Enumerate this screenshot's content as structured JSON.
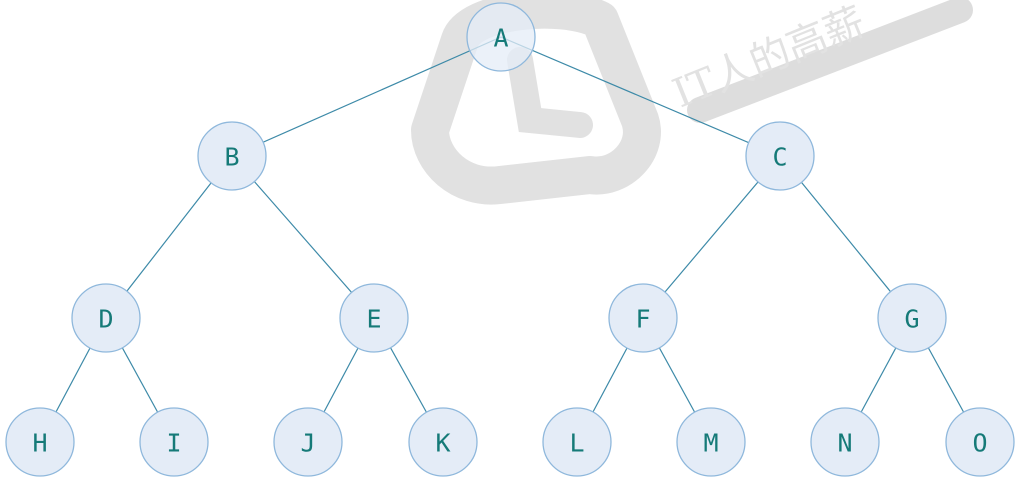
{
  "diagram": {
    "type": "binary-tree",
    "nodes": [
      {
        "id": "A",
        "label": "A",
        "level": 0,
        "index": 0
      },
      {
        "id": "B",
        "label": "B",
        "level": 1,
        "index": 0
      },
      {
        "id": "C",
        "label": "C",
        "level": 1,
        "index": 1
      },
      {
        "id": "D",
        "label": "D",
        "level": 2,
        "index": 0
      },
      {
        "id": "E",
        "label": "E",
        "level": 2,
        "index": 1
      },
      {
        "id": "F",
        "label": "F",
        "level": 2,
        "index": 2
      },
      {
        "id": "G",
        "label": "G",
        "level": 2,
        "index": 3
      },
      {
        "id": "H",
        "label": "H",
        "level": 3,
        "index": 0
      },
      {
        "id": "I",
        "label": "I",
        "level": 3,
        "index": 1
      },
      {
        "id": "J",
        "label": "J",
        "level": 3,
        "index": 2
      },
      {
        "id": "K",
        "label": "K",
        "level": 3,
        "index": 3
      },
      {
        "id": "L",
        "label": "L",
        "level": 3,
        "index": 4
      },
      {
        "id": "M",
        "label": "M",
        "level": 3,
        "index": 5
      },
      {
        "id": "N",
        "label": "N",
        "level": 3,
        "index": 6
      },
      {
        "id": "O",
        "label": "O",
        "level": 3,
        "index": 7
      }
    ],
    "edges": [
      {
        "from": "A",
        "to": "B"
      },
      {
        "from": "A",
        "to": "C"
      },
      {
        "from": "B",
        "to": "D"
      },
      {
        "from": "B",
        "to": "E"
      },
      {
        "from": "C",
        "to": "F"
      },
      {
        "from": "C",
        "to": "G"
      },
      {
        "from": "D",
        "to": "H"
      },
      {
        "from": "D",
        "to": "I"
      },
      {
        "from": "E",
        "to": "J"
      },
      {
        "from": "E",
        "to": "K"
      },
      {
        "from": "F",
        "to": "L"
      },
      {
        "from": "F",
        "to": "M"
      },
      {
        "from": "G",
        "to": "N"
      },
      {
        "from": "G",
        "to": "O"
      }
    ]
  },
  "watermark": {
    "text": "IT人的高薪",
    "icon": "brand-logo-icon"
  },
  "colors": {
    "edge": "#3d8aa8",
    "node_fill": "#e4ecf7",
    "node_stroke": "#8fb8dc",
    "label": "#157a78",
    "watermark": "#d9d9d9"
  }
}
